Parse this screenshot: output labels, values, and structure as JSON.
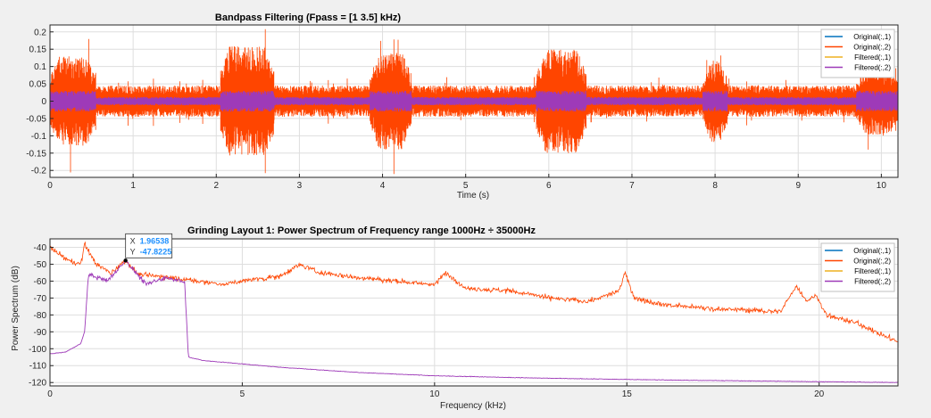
{
  "colors": {
    "figure_bg": "#f0f0f0",
    "axes_bg": "#ffffff",
    "grid": "#dedede",
    "axis": "#262626",
    "original_1": "#0072bd",
    "original_2": "#ff4500",
    "filtered_1": "#edb120",
    "filtered_2": "#9e3ab8",
    "datatip_value": "#1e90ff"
  },
  "chart_data": [
    {
      "type": "line",
      "title": "Bandpass Filtering  (Fpass = [1 3.5] kHz)",
      "xlabel": "Time (s)",
      "ylabel": "",
      "xlim": [
        0,
        10.2
      ],
      "ylim": [
        -0.22,
        0.22
      ],
      "grid": true,
      "legend_placement": "top-right",
      "xticks": [
        0,
        1,
        2,
        3,
        4,
        5,
        6,
        7,
        8,
        9,
        10
      ],
      "yticks": [
        -0.2,
        -0.15,
        -0.1,
        -0.05,
        0,
        0.05,
        0.1,
        0.15,
        0.2
      ],
      "xtick_labels": [
        "0",
        "1",
        "2",
        "3",
        "4",
        "5",
        "6",
        "7",
        "8",
        "9",
        "10"
      ],
      "ytick_labels": [
        "-0.2",
        "-0.15",
        "-0.1",
        "-0.05",
        "0",
        "0.05",
        "0.1",
        "0.15",
        "0.2"
      ],
      "signal": {
        "bursts": [
          {
            "start": 0.0,
            "end": 0.55,
            "amplitude": 0.13
          },
          {
            "start": 2.05,
            "end": 2.7,
            "amplitude": 0.16
          },
          {
            "start": 3.85,
            "end": 4.35,
            "amplitude": 0.14
          },
          {
            "start": 5.85,
            "end": 6.45,
            "amplitude": 0.15
          },
          {
            "start": 7.85,
            "end": 8.15,
            "amplitude": 0.12
          },
          {
            "start": 9.7,
            "end": 10.2,
            "amplitude": 0.1
          }
        ],
        "background_amplitude": 0.045,
        "filtered_burst_amplitude": 0.03,
        "filtered_background_amplitude": 0.012
      },
      "series": [
        {
          "name": "Original(:,1)",
          "color": "#0072bd"
        },
        {
          "name": "Original(:,2)",
          "color": "#ff4500"
        },
        {
          "name": "Filtered(:,1)",
          "color": "#edb120"
        },
        {
          "name": "Filtered(:,2)",
          "color": "#9e3ab8"
        }
      ]
    },
    {
      "type": "line",
      "title": "Grinding Layout 1: Power Spectrum of Frequency range 1000Hz ÷ 35000Hz",
      "xlabel": "Frequency (kHz)",
      "ylabel": "Power Spectrum (dB)",
      "xlim": [
        0,
        22.05
      ],
      "ylim": [
        -122,
        -35
      ],
      "grid": true,
      "legend_placement": "top-right",
      "xticks": [
        0,
        5,
        10,
        15,
        20
      ],
      "yticks": [
        -120,
        -110,
        -100,
        -90,
        -80,
        -70,
        -60,
        -50,
        -40
      ],
      "xtick_labels": [
        "0",
        "5",
        "10",
        "15",
        "20"
      ],
      "ytick_labels": [
        "-120",
        "-110",
        "-100",
        "-90",
        "-80",
        "-70",
        "-60",
        "-50",
        "-40"
      ],
      "original_spectrum": {
        "x": [
          0,
          0.3,
          0.5,
          0.8,
          0.9,
          1.2,
          1.6,
          1.96,
          2.3,
          2.8,
          3.2,
          3.8,
          4.5,
          5.0,
          6.0,
          6.5,
          7.0,
          8.0,
          9.0,
          10.0,
          10.3,
          10.8,
          12.0,
          13.0,
          14.0,
          14.8,
          14.95,
          15.2,
          16.0,
          17.0,
          18.0,
          19.0,
          19.4,
          19.7,
          19.9,
          20.2,
          21.0,
          22.05
        ],
        "y": [
          -40,
          -45,
          -48,
          -50,
          -38,
          -50,
          -55,
          -47.8,
          -56,
          -57,
          -58,
          -60,
          -62,
          -60,
          -57,
          -50,
          -55,
          -58,
          -60,
          -62,
          -55,
          -64,
          -66,
          -70,
          -72,
          -66,
          -55,
          -70,
          -74,
          -76,
          -77,
          -78,
          -63,
          -72,
          -68,
          -80,
          -85,
          -96
        ]
      },
      "filtered_spectrum": {
        "x": [
          0,
          0.4,
          0.8,
          0.9,
          1.0,
          1.5,
          1.96,
          2.5,
          3.0,
          3.5,
          3.6,
          4.0,
          6.0,
          8.0,
          10.0,
          13.0,
          16.0,
          20.0,
          22.05
        ],
        "y": [
          -103,
          -102,
          -97,
          -90,
          -56,
          -60,
          -47.8,
          -62,
          -58,
          -60,
          -105,
          -107,
          -111,
          -114,
          -116,
          -117.5,
          -118.5,
          -119.5,
          -120
        ]
      },
      "series": [
        {
          "name": "Original(:,1)",
          "color": "#0072bd"
        },
        {
          "name": "Original(:,2)",
          "color": "#ff4500"
        },
        {
          "name": "Filtered(:,1)",
          "color": "#edb120"
        },
        {
          "name": "Filtered(:,2)",
          "color": "#9e3ab8"
        }
      ],
      "datatip": {
        "x": 1.96538,
        "y": -47.8225,
        "x_label": "X",
        "y_label": "Y",
        "x_text": "1.96538",
        "y_text": "-47.8225"
      }
    }
  ]
}
